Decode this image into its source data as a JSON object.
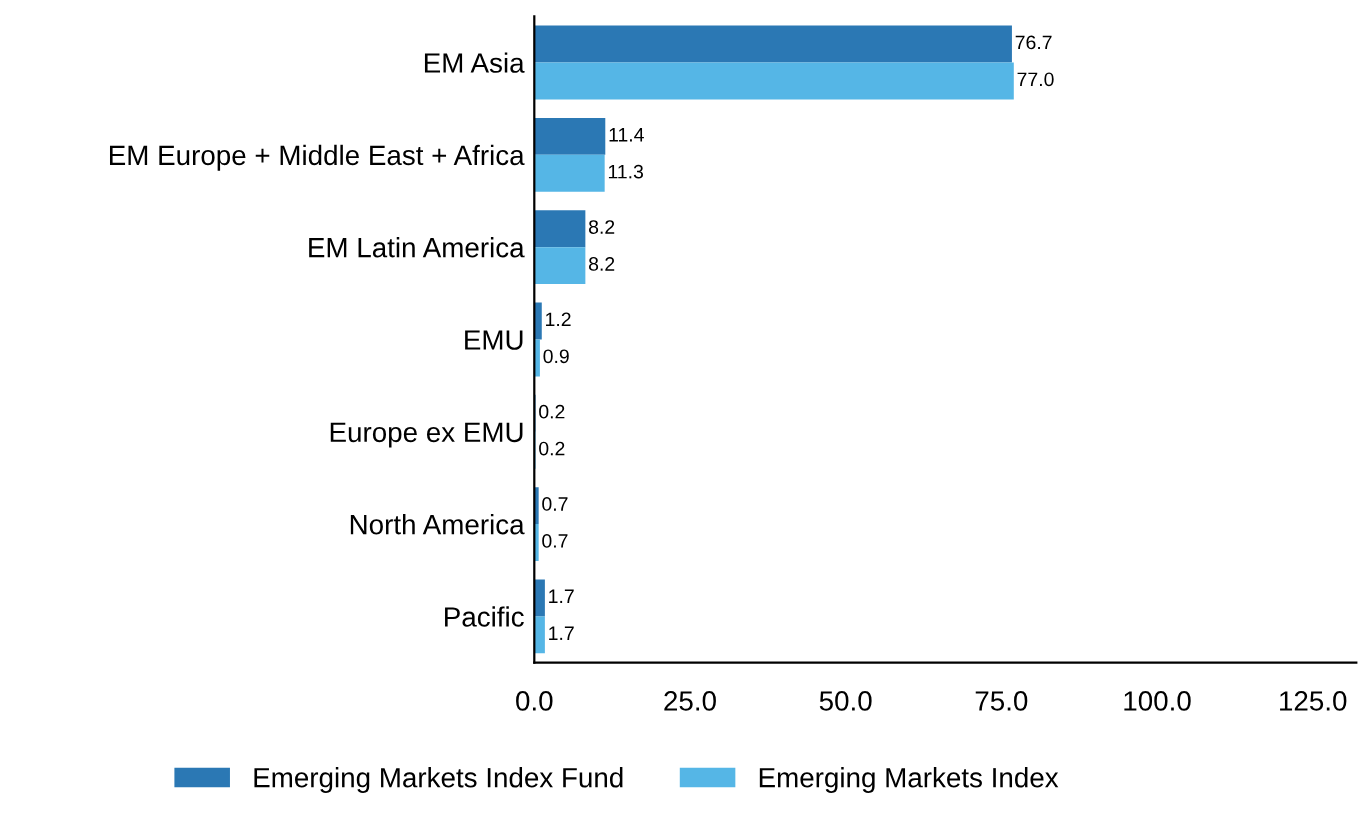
{
  "chart_data": {
    "type": "bar",
    "orientation": "horizontal",
    "categories": [
      "EM Asia",
      "EM Europe + Middle East + Africa",
      "EM Latin America",
      "EMU",
      "Europe ex EMU",
      "North America",
      "Pacific"
    ],
    "series": [
      {
        "name": "Emerging Markets Index Fund",
        "color": "#2b78b4",
        "values": [
          76.7,
          11.4,
          8.2,
          1.2,
          0.2,
          0.7,
          1.7
        ],
        "value_labels": [
          "76.7",
          "11.4",
          "8.2",
          "1.2",
          "0.2",
          "0.7",
          "1.7"
        ]
      },
      {
        "name": "Emerging Markets Index",
        "color": "#55b6e6",
        "values": [
          77.0,
          11.3,
          8.2,
          0.9,
          0.2,
          0.7,
          1.7
        ],
        "value_labels": [
          "77.0",
          "11.3",
          "8.2",
          "0.9",
          "0.2",
          "0.7",
          "1.7"
        ]
      }
    ],
    "xlim": [
      0,
      132
    ],
    "xticks": [
      {
        "value": 0,
        "label": "0.0"
      },
      {
        "value": 25,
        "label": "25.0"
      },
      {
        "value": 50,
        "label": "50.0"
      },
      {
        "value": 75,
        "label": "75.0"
      },
      {
        "value": 100,
        "label": "100.0"
      },
      {
        "value": 125,
        "label": "125.0"
      }
    ],
    "grid": false,
    "legend": "bottom"
  }
}
